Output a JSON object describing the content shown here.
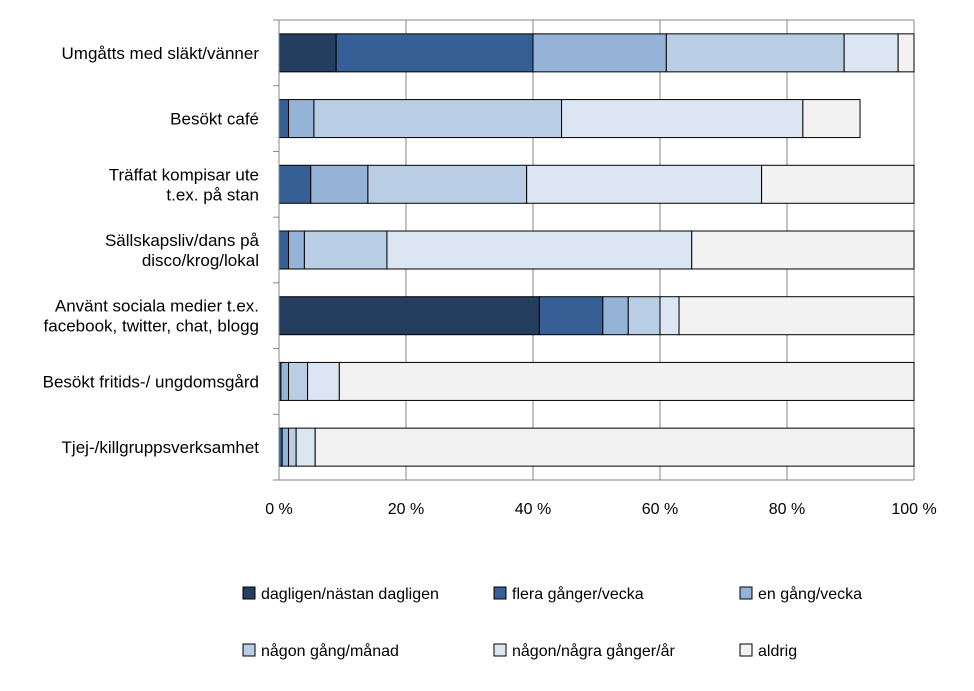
{
  "chart_data": {
    "type": "bar",
    "orientation": "horizontal",
    "stacked": true,
    "grid": true,
    "legend_position": "bottom",
    "title": "",
    "xlabel": "",
    "ylabel": "",
    "xlim": [
      0,
      100
    ],
    "x_ticks": [
      "0 %",
      "20 %",
      "40 %",
      "60 %",
      "80 %",
      "100 %"
    ],
    "categories": [
      [
        "Umgåtts med släkt/vänner"
      ],
      [
        "Besökt café"
      ],
      [
        "Träffat kompisar ute",
        "t.ex. på stan"
      ],
      [
        "Sällskapsliv/dans på",
        "disco/krog/lokal"
      ],
      [
        "Använt sociala medier t.ex.",
        "facebook, twitter, chat, blogg"
      ],
      [
        "Besökt fritids-/ ungdomsgård"
      ],
      [
        "Tjej-/killgruppsverksamhet"
      ]
    ],
    "series": [
      {
        "name": "dagligen/nästan dagligen",
        "color": "#253d5e",
        "values": [
          9,
          0,
          0,
          0,
          41,
          0,
          0
        ]
      },
      {
        "name": "flera gånger/vecka",
        "color": "#365f95",
        "values": [
          31,
          1.5,
          5,
          1.5,
          10,
          0.3,
          0.5
        ]
      },
      {
        "name": "en gång/vecka",
        "color": "#95b3d7",
        "values": [
          21,
          4,
          9,
          2.5,
          4,
          1.2,
          1
        ]
      },
      {
        "name": "någon gång/månad",
        "color": "#b9cde5",
        "values": [
          28,
          39,
          25,
          13,
          5,
          3,
          1.2
        ]
      },
      {
        "name": "någon/några gånger/år",
        "color": "#dce6f2",
        "values": [
          8.5,
          38,
          37,
          48,
          3,
          5,
          3
        ]
      },
      {
        "name": "aldrig",
        "color": "#f2f2f2",
        "values": [
          2.5,
          9,
          24,
          35,
          37,
          90.5,
          94.3
        ]
      }
    ]
  }
}
